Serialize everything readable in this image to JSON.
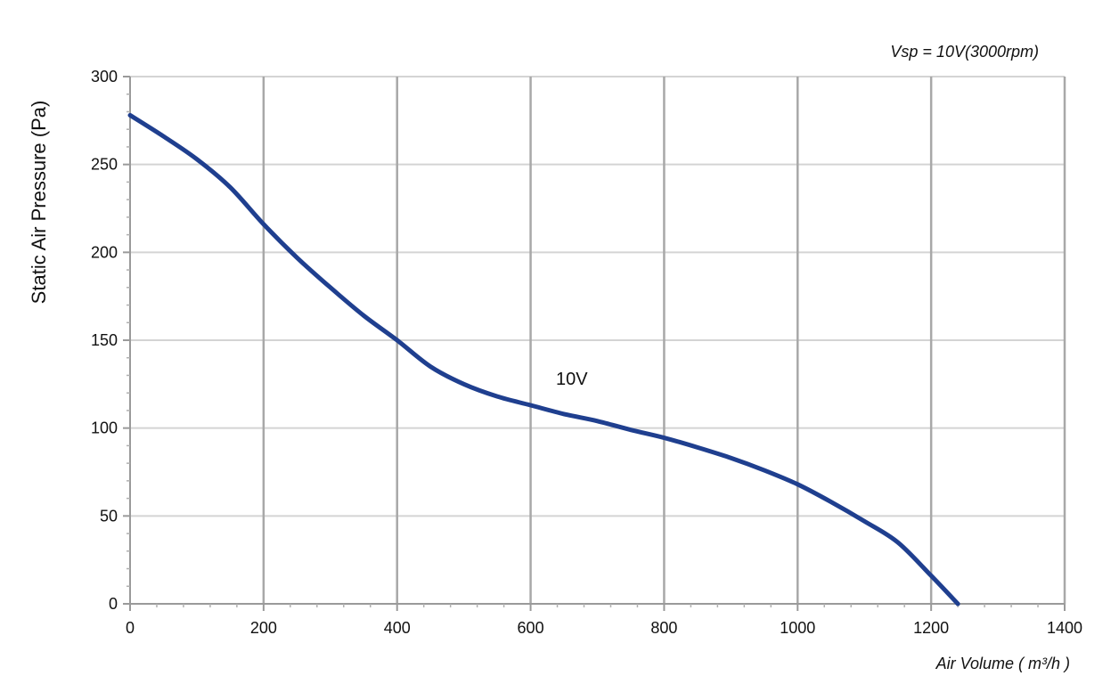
{
  "chart_data": {
    "type": "line",
    "title": "",
    "annotation": "Vsp = 10V(3000rpm)",
    "xlabel": "Air Volume ( m³/h )",
    "ylabel": "Static Air Pressure  (Pa)",
    "xlim": [
      0,
      1400
    ],
    "ylim": [
      0,
      300
    ],
    "xticks": [
      "0",
      "200",
      "400",
      "600",
      "800",
      "1000",
      "1200",
      "1400"
    ],
    "yticks": [
      "0",
      "50",
      "100",
      "150",
      "200",
      "250",
      "300"
    ],
    "grid": true,
    "series": [
      {
        "name": "10V",
        "color": "#1f3f8f",
        "x": [
          0,
          50,
          100,
          150,
          200,
          250,
          300,
          350,
          400,
          450,
          500,
          550,
          600,
          650,
          700,
          750,
          800,
          850,
          900,
          950,
          1000,
          1050,
          1100,
          1150,
          1200,
          1240
        ],
        "y": [
          278,
          266,
          253,
          237,
          216,
          197,
          180,
          164,
          150,
          135,
          125,
          118,
          113,
          108,
          104,
          99,
          94.5,
          89,
          83,
          76,
          68,
          58,
          47,
          35,
          16,
          0
        ]
      }
    ]
  }
}
